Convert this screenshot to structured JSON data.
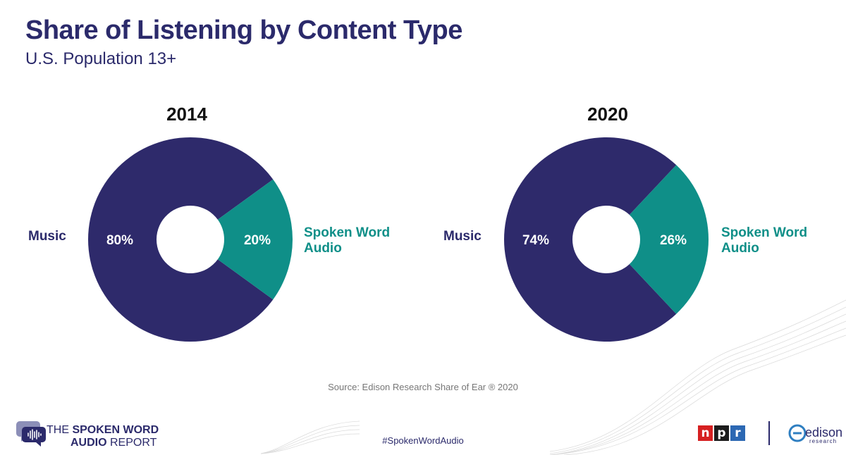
{
  "header": {
    "title": "Share of Listening by Content Type",
    "subtitle": "U.S. Population 13+"
  },
  "chart_data": [
    {
      "type": "pie",
      "title": "2014",
      "categories": [
        "Music",
        "Spoken Word Audio"
      ],
      "values": [
        80,
        20
      ],
      "data_labels": [
        "80%",
        "20%"
      ],
      "category_labels": {
        "music": "Music",
        "spoken_line1": "Spoken Word",
        "spoken_line2": "Audio"
      }
    },
    {
      "type": "pie",
      "title": "2020",
      "categories": [
        "Music",
        "Spoken Word Audio"
      ],
      "values": [
        74,
        26
      ],
      "data_labels": [
        "74%",
        "26%"
      ],
      "category_labels": {
        "music": "Music",
        "spoken_line1": "Spoken Word",
        "spoken_line2": "Audio"
      }
    }
  ],
  "colors": {
    "music": "#2e2a6b",
    "spoken": "#0f8f88",
    "title": "#2b2a6b"
  },
  "footer": {
    "source": "Source: Edison Research Share of Ear ® 2020",
    "hashtag": "#SpokenWordAudio",
    "brand_line1_prefix": "THE ",
    "brand_line1_bold": "SPOKEN WORD",
    "brand_line2_bold": "AUDIO ",
    "brand_line2_suffix": "REPORT",
    "npr_letters": [
      "n",
      "p",
      "r"
    ],
    "edison_name": "edison",
    "edison_sub": "research",
    "brand_icon": "speech-bubble-waveform-icon"
  }
}
